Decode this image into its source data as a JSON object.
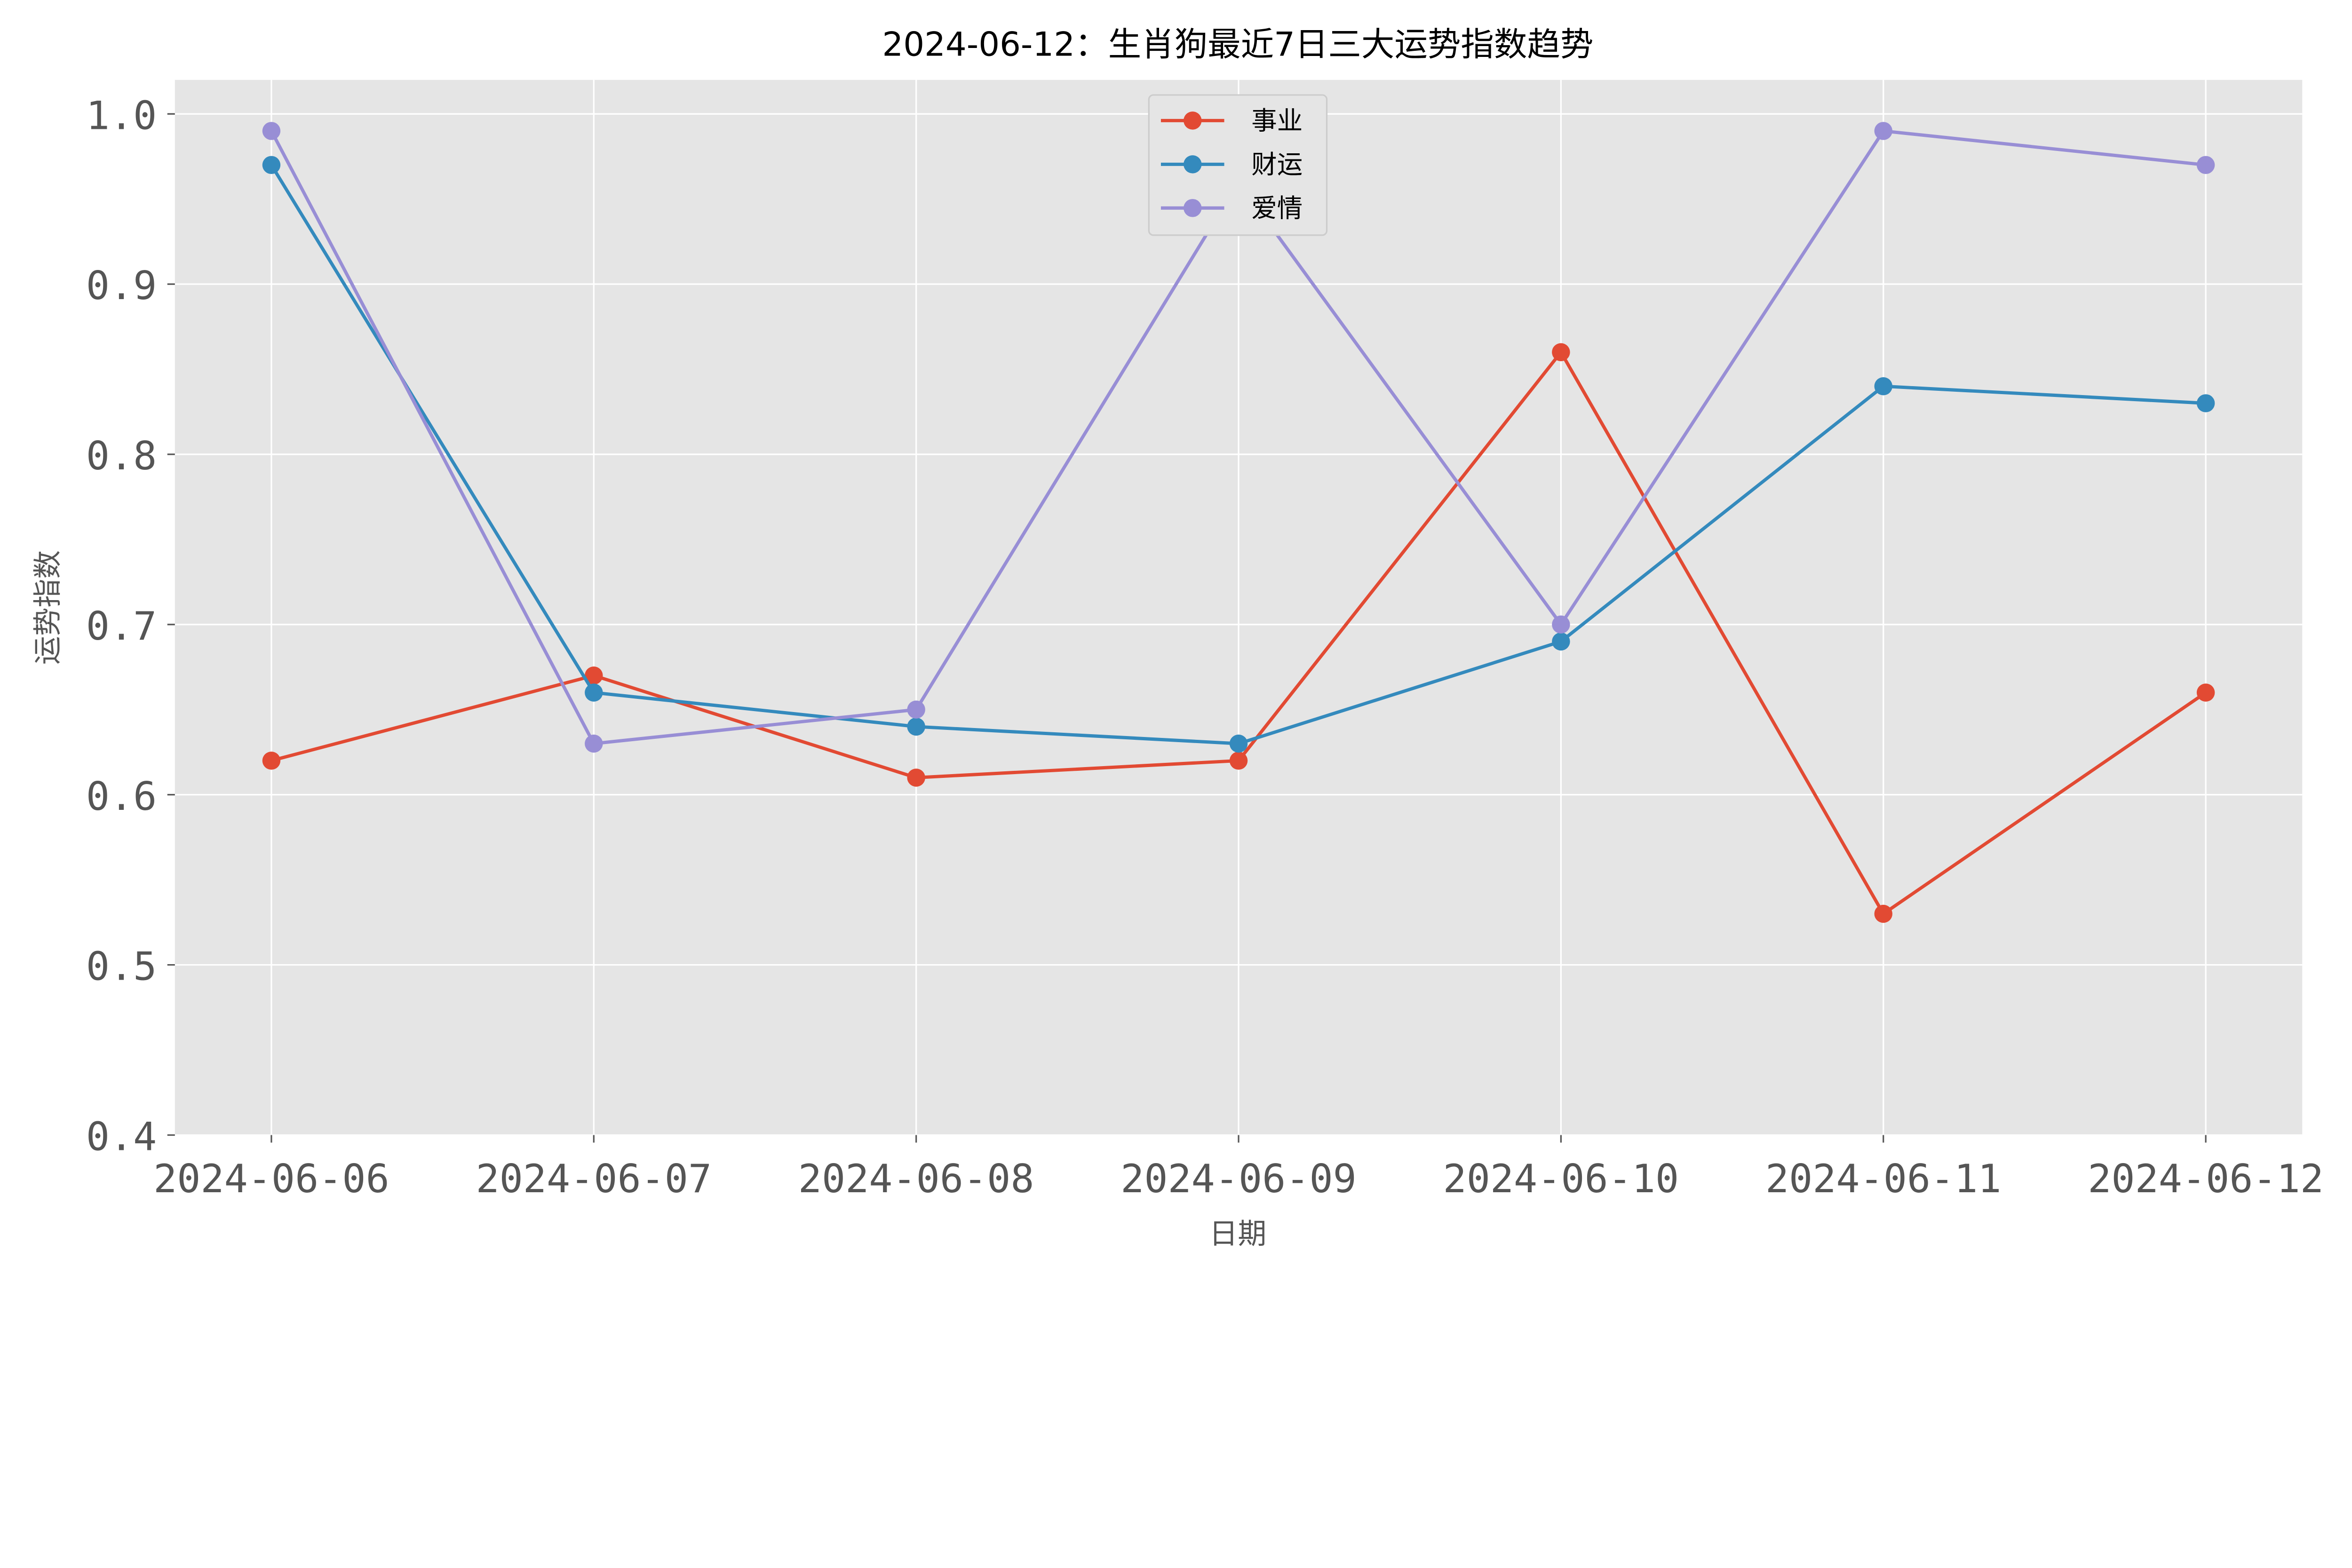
{
  "chart_data": {
    "type": "line",
    "title": "2024-06-12：生肖狗最近7日三大运势指数趋势",
    "xlabel": "日期",
    "ylabel": "运势指数",
    "categories": [
      "2024-06-06",
      "2024-06-07",
      "2024-06-08",
      "2024-06-09",
      "2024-06-10",
      "2024-06-11",
      "2024-06-12"
    ],
    "ylim": [
      0.4,
      1.02
    ],
    "yticks": [
      "0.4",
      "0.5",
      "0.6",
      "0.7",
      "0.8",
      "0.9",
      "1.0"
    ],
    "ytick_values": [
      0.4,
      0.5,
      0.6,
      0.7,
      0.8,
      0.9,
      1.0
    ],
    "grid": true,
    "legend_position": "top-center",
    "background": "#e5e5e5",
    "series": [
      {
        "name": "事业",
        "color": "#e24a33",
        "values": [
          0.62,
          0.67,
          0.61,
          0.62,
          0.86,
          0.53,
          0.66
        ]
      },
      {
        "name": "财运",
        "color": "#348abd",
        "values": [
          0.97,
          0.66,
          0.64,
          0.63,
          0.69,
          0.84,
          0.83
        ]
      },
      {
        "name": "爱情",
        "color": "#988ed5",
        "values": [
          0.99,
          0.63,
          0.65,
          0.96,
          0.7,
          0.99,
          0.97
        ]
      }
    ]
  }
}
